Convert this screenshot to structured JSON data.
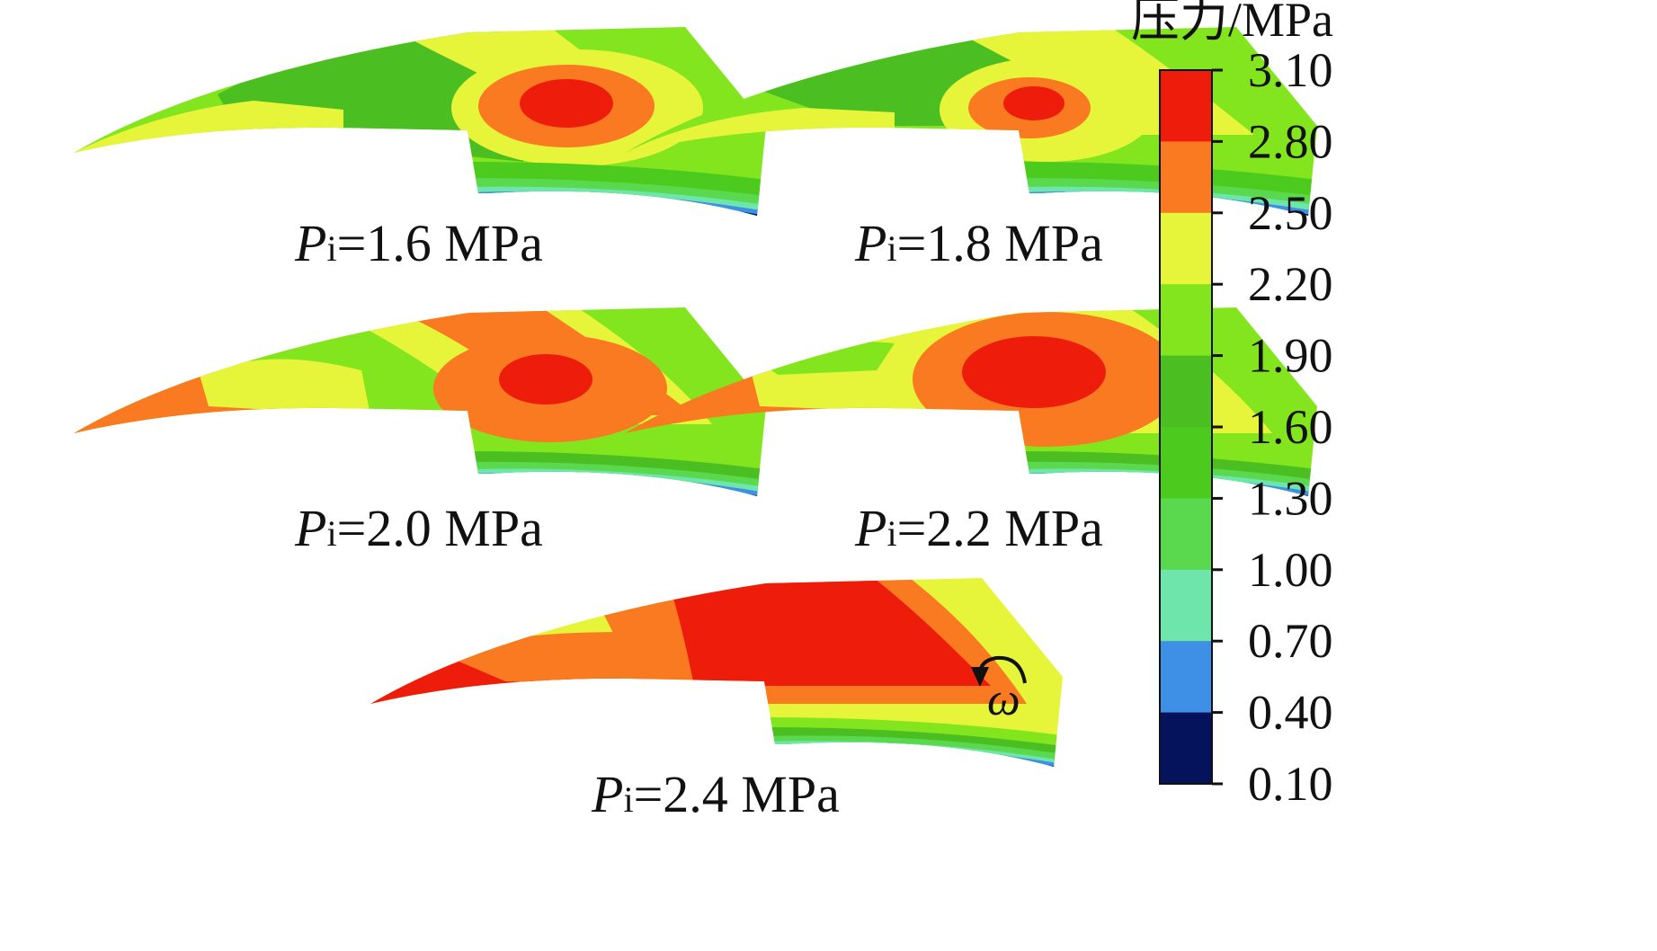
{
  "colorbar": {
    "title": "压力/MPa",
    "ticks": [
      "3.10",
      "2.80",
      "2.50",
      "2.20",
      "1.90",
      "1.60",
      "1.30",
      "1.00",
      "0.70",
      "0.40",
      "0.10"
    ],
    "band_colors": [
      "#ee1d0b",
      "#f97a20",
      "#e6f53a",
      "#83e51e",
      "#4bbf21",
      "#4ccb1e",
      "#5ad84e",
      "#6ee6ab",
      "#3e8fe6",
      "#05125c"
    ]
  },
  "panels": [
    {
      "p_var": "P",
      "p_sub": "i",
      "p_rest": "=1.6 MPa",
      "pressure_MPa": 1.6,
      "peak_zone": "red"
    },
    {
      "p_var": "P",
      "p_sub": "i",
      "p_rest": "=1.8 MPa",
      "pressure_MPa": 1.8,
      "peak_zone": "red"
    },
    {
      "p_var": "P",
      "p_sub": "i",
      "p_rest": "=2.0 MPa",
      "pressure_MPa": 2.0,
      "peak_zone": "red"
    },
    {
      "p_var": "P",
      "p_sub": "i",
      "p_rest": "=2.2 MPa",
      "pressure_MPa": 2.2,
      "peak_zone": "red"
    },
    {
      "p_var": "P",
      "p_sub": "i",
      "p_rest": "=2.4 MPa",
      "pressure_MPa": 2.4,
      "peak_zone": "red"
    }
  ],
  "rotation": {
    "symbol": "ω",
    "icon": "counterclockwise-arrow-icon"
  }
}
